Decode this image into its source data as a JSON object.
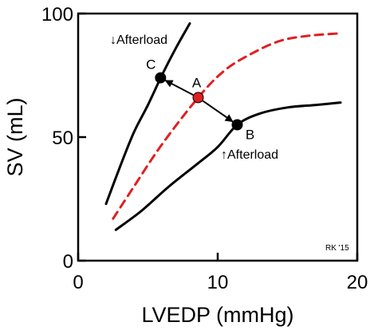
{
  "chart_data": {
    "type": "line",
    "title": "",
    "xlabel": "LVEDP (mmHg)",
    "ylabel": "SV (mL)",
    "xlim": [
      0,
      20
    ],
    "ylim": [
      0,
      100
    ],
    "xticks": [
      0,
      10,
      20
    ],
    "yticks": [
      0,
      50,
      100
    ],
    "grid": false,
    "series": [
      {
        "name": "↓Afterload",
        "color": "#000000",
        "style": "solid",
        "x": [
          2.0,
          3.0,
          4.0,
          5.0,
          6.0,
          7.0,
          8.0
        ],
        "y": [
          23,
          38,
          52,
          63,
          75,
          86,
          96
        ]
      },
      {
        "name": "",
        "color": "#e02020",
        "style": "dashed",
        "x": [
          2.5,
          4.0,
          6.0,
          8.6,
          10.5,
          12.5,
          14.5,
          16.5,
          18.8
        ],
        "y": [
          17,
          30,
          47,
          66,
          77,
          84,
          89,
          91,
          92
        ]
      },
      {
        "name": "↑Afterload",
        "color": "#000000",
        "style": "solid",
        "x": [
          2.7,
          4.5,
          6.5,
          8.5,
          10.0,
          11.4,
          13.0,
          15.0,
          17.0,
          18.8
        ],
        "y": [
          12.5,
          20,
          30,
          39,
          46,
          55,
          59.5,
          62,
          63,
          64
        ]
      }
    ],
    "points": [
      {
        "label": "A",
        "x": 8.6,
        "y": 66,
        "color": "#e02020"
      },
      {
        "label": "B",
        "x": 11.4,
        "y": 55,
        "color": "#000000"
      },
      {
        "label": "C",
        "x": 5.9,
        "y": 74,
        "color": "#000000"
      }
    ],
    "annotations": {
      "decreased_afterload": "↓Afterload",
      "increased_afterload": "↑Afterload",
      "credit": "RK '15"
    }
  }
}
